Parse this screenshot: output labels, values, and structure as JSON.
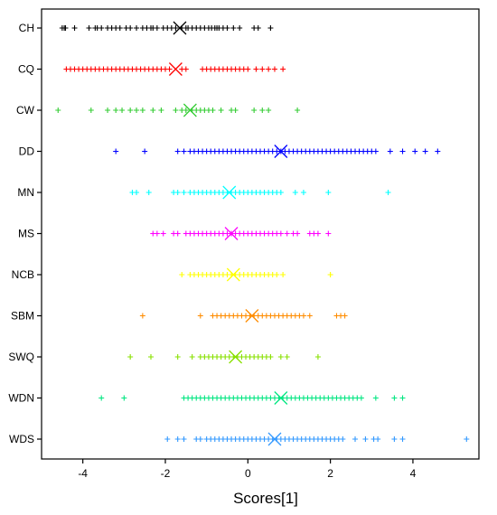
{
  "chart_data": {
    "type": "scatter",
    "xlabel": "Scores[1]",
    "ylabel": "",
    "xlim": [
      -5,
      5.6
    ],
    "xticks": [
      -4,
      -2,
      0,
      2,
      4
    ],
    "grid": false,
    "legend": "none",
    "marker": "+",
    "mean_marker": "x",
    "categories": [
      "CH",
      "CQ",
      "CW",
      "DD",
      "MN",
      "MS",
      "NCB",
      "SBM",
      "SWQ",
      "WDN",
      "WDS"
    ],
    "series": [
      {
        "name": "CH",
        "color": "#000000",
        "mean": -1.65,
        "values": [
          -4.5,
          -4.45,
          -4.42,
          -4.2,
          -3.85,
          -3.7,
          -3.65,
          -3.55,
          -3.4,
          -3.3,
          -3.2,
          -3.1,
          -2.95,
          -2.85,
          -2.7,
          -2.55,
          -2.45,
          -2.35,
          -2.3,
          -2.2,
          -2.05,
          -1.95,
          -1.85,
          -1.75,
          -1.6,
          -1.5,
          -1.45,
          -1.35,
          -1.25,
          -1.15,
          -1.05,
          -0.95,
          -0.88,
          -0.8,
          -0.75,
          -0.7,
          -0.6,
          -0.5,
          -0.35,
          -0.2,
          0.15,
          0.25,
          0.55
        ]
      },
      {
        "name": "CQ",
        "color": "#ff0000",
        "mean": -1.75,
        "values": [
          -4.4,
          -4.3,
          -4.2,
          -4.1,
          -4.0,
          -3.9,
          -3.8,
          -3.7,
          -3.6,
          -3.5,
          -3.4,
          -3.3,
          -3.2,
          -3.1,
          -3.0,
          -2.9,
          -2.8,
          -2.7,
          -2.6,
          -2.5,
          -2.4,
          -2.3,
          -2.2,
          -2.1,
          -2.0,
          -1.9,
          -1.6,
          -1.5,
          -1.1,
          -1.0,
          -0.9,
          -0.8,
          -0.7,
          -0.6,
          -0.5,
          -0.4,
          -0.3,
          -0.2,
          -0.1,
          0.0,
          0.2,
          0.35,
          0.5,
          0.65,
          0.85
        ]
      },
      {
        "name": "CW",
        "color": "#33cc33",
        "mean": -1.4,
        "values": [
          -4.6,
          -3.8,
          -3.4,
          -3.2,
          -3.05,
          -2.85,
          -2.7,
          -2.55,
          -2.3,
          -2.1,
          -1.75,
          -1.6,
          -1.5,
          -1.35,
          -1.25,
          -1.15,
          -1.05,
          -0.95,
          -0.85,
          -0.65,
          -0.4,
          -0.3,
          0.15,
          0.35,
          0.5,
          1.2
        ]
      },
      {
        "name": "DD",
        "color": "#0000ff",
        "mean": 0.8,
        "values": [
          -3.2,
          -2.5,
          -1.7,
          -1.55,
          -1.4,
          -1.3,
          -1.2,
          -1.1,
          -1.0,
          -0.9,
          -0.8,
          -0.7,
          -0.6,
          -0.5,
          -0.4,
          -0.3,
          -0.2,
          -0.1,
          0.0,
          0.1,
          0.2,
          0.3,
          0.4,
          0.5,
          0.6,
          0.7,
          0.8,
          0.9,
          1.0,
          1.1,
          1.2,
          1.3,
          1.4,
          1.5,
          1.6,
          1.7,
          1.8,
          1.9,
          2.0,
          2.1,
          2.2,
          2.3,
          2.4,
          2.5,
          2.6,
          2.7,
          2.8,
          2.9,
          3.0,
          3.1,
          3.45,
          3.75,
          4.05,
          4.3,
          4.6
        ]
      },
      {
        "name": "MN",
        "color": "#00ffff",
        "mean": -0.45,
        "values": [
          -2.8,
          -2.7,
          -2.4,
          -1.8,
          -1.7,
          -1.55,
          -1.4,
          -1.3,
          -1.2,
          -1.1,
          -1.0,
          -0.9,
          -0.8,
          -0.7,
          -0.6,
          -0.5,
          -0.4,
          -0.3,
          -0.2,
          -0.1,
          0.0,
          0.1,
          0.2,
          0.3,
          0.4,
          0.5,
          0.6,
          0.7,
          0.8,
          1.15,
          1.35,
          1.95,
          3.4
        ]
      },
      {
        "name": "MS",
        "color": "#ff00ff",
        "mean": -0.4,
        "values": [
          -2.3,
          -2.2,
          -2.05,
          -1.8,
          -1.7,
          -1.5,
          -1.4,
          -1.3,
          -1.2,
          -1.1,
          -1.0,
          -0.9,
          -0.8,
          -0.7,
          -0.6,
          -0.5,
          -0.4,
          -0.3,
          -0.2,
          -0.1,
          0.0,
          0.1,
          0.2,
          0.3,
          0.4,
          0.5,
          0.6,
          0.7,
          0.8,
          0.95,
          1.1,
          1.2,
          1.5,
          1.6,
          1.7,
          1.95
        ]
      },
      {
        "name": "NCB",
        "color": "#ffff00",
        "mean": -0.35,
        "values": [
          -1.6,
          -1.4,
          -1.3,
          -1.2,
          -1.1,
          -1.0,
          -0.9,
          -0.8,
          -0.7,
          -0.6,
          -0.5,
          -0.4,
          -0.3,
          -0.2,
          -0.1,
          0.0,
          0.1,
          0.2,
          0.3,
          0.4,
          0.5,
          0.6,
          0.7,
          0.85,
          2.0
        ]
      },
      {
        "name": "SBM",
        "color": "#ff8c00",
        "mean": 0.1,
        "values": [
          -2.55,
          -1.15,
          -0.85,
          -0.75,
          -0.65,
          -0.55,
          -0.45,
          -0.35,
          -0.25,
          -0.15,
          -0.05,
          0.05,
          0.15,
          0.25,
          0.35,
          0.45,
          0.55,
          0.65,
          0.75,
          0.85,
          0.95,
          1.05,
          1.15,
          1.25,
          1.35,
          1.5,
          2.15,
          2.25,
          2.35
        ]
      },
      {
        "name": "SWQ",
        "color": "#88e000",
        "mean": -0.3,
        "values": [
          -2.85,
          -2.35,
          -1.7,
          -1.35,
          -1.15,
          -1.05,
          -0.95,
          -0.85,
          -0.75,
          -0.65,
          -0.55,
          -0.45,
          -0.35,
          -0.25,
          -0.15,
          -0.05,
          0.05,
          0.15,
          0.25,
          0.35,
          0.45,
          0.55,
          0.8,
          0.95,
          1.7
        ]
      },
      {
        "name": "WDN",
        "color": "#00e680",
        "mean": 0.8,
        "values": [
          -3.55,
          -3.0,
          -1.55,
          -1.45,
          -1.35,
          -1.25,
          -1.15,
          -1.05,
          -0.95,
          -0.85,
          -0.75,
          -0.65,
          -0.55,
          -0.45,
          -0.35,
          -0.25,
          -0.15,
          -0.05,
          0.05,
          0.15,
          0.25,
          0.35,
          0.45,
          0.55,
          0.65,
          0.75,
          0.85,
          0.95,
          1.05,
          1.15,
          1.25,
          1.35,
          1.45,
          1.55,
          1.65,
          1.75,
          1.85,
          1.95,
          2.05,
          2.15,
          2.25,
          2.35,
          2.45,
          2.55,
          2.65,
          2.75,
          3.1,
          3.55,
          3.75
        ]
      },
      {
        "name": "WDS",
        "color": "#3399ff",
        "mean": 0.65,
        "values": [
          -1.95,
          -1.7,
          -1.55,
          -1.25,
          -1.15,
          -1.0,
          -0.9,
          -0.8,
          -0.7,
          -0.6,
          -0.5,
          -0.4,
          -0.3,
          -0.2,
          -0.1,
          0.0,
          0.1,
          0.2,
          0.3,
          0.4,
          0.5,
          0.6,
          0.7,
          0.8,
          0.9,
          1.0,
          1.1,
          1.2,
          1.3,
          1.4,
          1.5,
          1.6,
          1.7,
          1.8,
          1.9,
          2.0,
          2.1,
          2.2,
          2.3,
          2.6,
          2.85,
          3.05,
          3.15,
          3.55,
          3.75,
          5.3
        ]
      }
    ]
  }
}
